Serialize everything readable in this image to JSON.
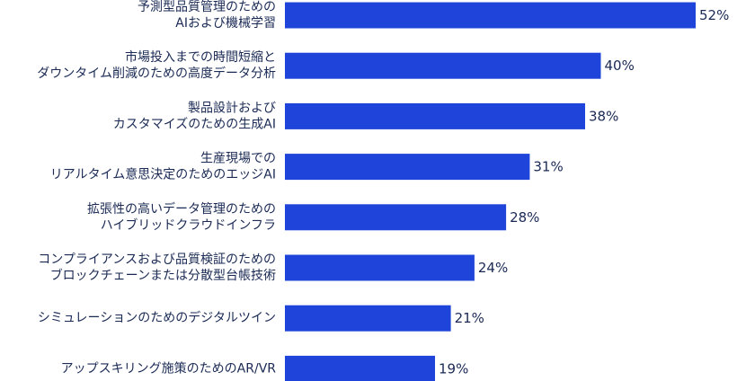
{
  "chart_data": {
    "type": "bar",
    "orientation": "horizontal",
    "categories": [
      [
        "予測型品質管理のための",
        "AIおよび機械学習"
      ],
      [
        "市場投入までの時間短縮と",
        "ダウンタイム削減のための高度データ分析"
      ],
      [
        "製品設計および",
        "カスタマイズのための生成AI"
      ],
      [
        "生産現場での",
        "リアルタイム意思決定のためのエッジAI"
      ],
      [
        "拡張性の高いデータ管理のための",
        "ハイブリッドクラウドインフラ"
      ],
      [
        "コンプライアンスおよび品質検証のための",
        "ブロックチェーンまたは分散型台帳技術"
      ],
      [
        "シミュレーションのためのデジタルツイン"
      ],
      [
        "アップスキリング施策のためのAR/VR"
      ]
    ],
    "values": [
      52,
      40,
      38,
      31,
      28,
      24,
      21,
      19
    ],
    "value_labels": [
      "52%",
      "40%",
      "38%",
      "31%",
      "28%",
      "24%",
      "21%",
      "19%"
    ],
    "xlim": [
      0,
      52
    ],
    "bar_color": "#1f44d9",
    "text_color": "#1a2a55",
    "grid": false,
    "legend": "none"
  }
}
